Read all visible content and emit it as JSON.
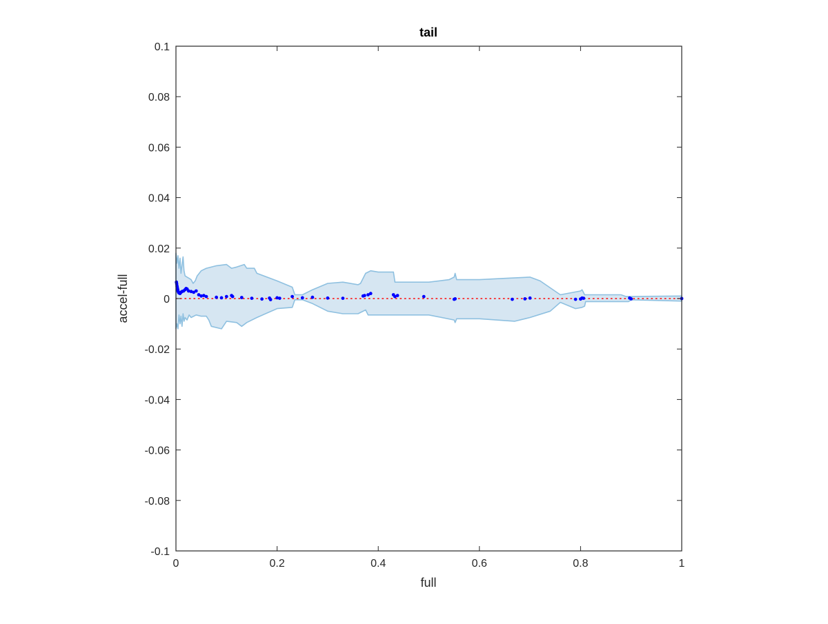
{
  "chart_data": {
    "type": "scatter",
    "title": "tail",
    "xlabel": "full",
    "ylabel": "accel-full",
    "xlim": [
      0,
      1
    ],
    "ylim": [
      -0.1,
      0.1
    ],
    "xticks": [
      0,
      0.2,
      0.4,
      0.6,
      0.8,
      1
    ],
    "xtick_labels": [
      "0",
      "0.2",
      "0.4",
      "0.6",
      "0.8",
      "1"
    ],
    "yticks": [
      -0.1,
      -0.08,
      -0.06,
      -0.04,
      -0.02,
      0,
      0.02,
      0.04,
      0.06,
      0.08,
      0.1
    ],
    "ytick_labels": [
      "-0.1",
      "-0.08",
      "-0.06",
      "-0.04",
      "-0.02",
      "0",
      "0.02",
      "0.04",
      "0.06",
      "0.08",
      "0.1"
    ],
    "grid": false,
    "box": true,
    "colors": {
      "points": "#0000ff",
      "band_fill": "#d6e6f2",
      "band_edge": "#8ec0e0",
      "zero_line": "#ff0000",
      "axes": "#262626"
    },
    "band": {
      "upper": [
        [
          0,
          0.018
        ],
        [
          0.002,
          0.014
        ],
        [
          0.004,
          0.017
        ],
        [
          0.006,
          0.012
        ],
        [
          0.008,
          0.016
        ],
        [
          0.01,
          0.01
        ],
        [
          0.014,
          0.0165
        ],
        [
          0.016,
          0.011
        ],
        [
          0.018,
          0.009
        ],
        [
          0.022,
          0.0085
        ],
        [
          0.026,
          0.008
        ],
        [
          0.03,
          0.0075
        ],
        [
          0.034,
          0.006
        ],
        [
          0.038,
          0.007
        ],
        [
          0.042,
          0.009
        ],
        [
          0.05,
          0.011
        ],
        [
          0.06,
          0.012
        ],
        [
          0.08,
          0.013
        ],
        [
          0.1,
          0.0135
        ],
        [
          0.11,
          0.012
        ],
        [
          0.12,
          0.0125
        ],
        [
          0.135,
          0.0135
        ],
        [
          0.14,
          0.012
        ],
        [
          0.155,
          0.012
        ],
        [
          0.16,
          0.01
        ],
        [
          0.2,
          0.007
        ],
        [
          0.23,
          0.0045
        ],
        [
          0.235,
          0.0015
        ],
        [
          0.25,
          0.0015
        ],
        [
          0.27,
          0.0035
        ],
        [
          0.3,
          0.006
        ],
        [
          0.33,
          0.0065
        ],
        [
          0.36,
          0.0055
        ],
        [
          0.365,
          0.006
        ],
        [
          0.375,
          0.01
        ],
        [
          0.38,
          0.0105
        ],
        [
          0.385,
          0.011
        ],
        [
          0.4,
          0.0105
        ],
        [
          0.43,
          0.0105
        ],
        [
          0.433,
          0.0065
        ],
        [
          0.5,
          0.0065
        ],
        [
          0.54,
          0.0075
        ],
        [
          0.55,
          0.0085
        ],
        [
          0.552,
          0.01
        ],
        [
          0.555,
          0.0075
        ],
        [
          0.6,
          0.0075
        ],
        [
          0.65,
          0.008
        ],
        [
          0.7,
          0.0085
        ],
        [
          0.72,
          0.007
        ],
        [
          0.76,
          0.0015
        ],
        [
          0.8,
          0.003
        ],
        [
          0.803,
          0.0035
        ],
        [
          0.808,
          0.0015
        ],
        [
          0.88,
          0.0015
        ],
        [
          0.89,
          0.0008
        ],
        [
          1,
          0.001
        ]
      ],
      "lower": [
        [
          1,
          -0.001
        ],
        [
          0.9,
          -0.0005
        ],
        [
          0.895,
          -0.0012
        ],
        [
          0.81,
          -0.0012
        ],
        [
          0.808,
          -0.003
        ],
        [
          0.803,
          -0.0035
        ],
        [
          0.79,
          -0.004
        ],
        [
          0.76,
          -0.0015
        ],
        [
          0.74,
          -0.005
        ],
        [
          0.7,
          -0.0075
        ],
        [
          0.67,
          -0.009
        ],
        [
          0.6,
          -0.008
        ],
        [
          0.555,
          -0.008
        ],
        [
          0.552,
          -0.0095
        ],
        [
          0.55,
          -0.0085
        ],
        [
          0.5,
          -0.0065
        ],
        [
          0.433,
          -0.0065
        ],
        [
          0.43,
          -0.0065
        ],
        [
          0.4,
          -0.0065
        ],
        [
          0.38,
          -0.0065
        ],
        [
          0.375,
          -0.0045
        ],
        [
          0.36,
          -0.006
        ],
        [
          0.33,
          -0.006
        ],
        [
          0.3,
          -0.005
        ],
        [
          0.27,
          -0.002
        ],
        [
          0.25,
          -0.0005
        ],
        [
          0.235,
          -0.0005
        ],
        [
          0.23,
          -0.0035
        ],
        [
          0.2,
          -0.004
        ],
        [
          0.16,
          -0.0075
        ],
        [
          0.14,
          -0.0095
        ],
        [
          0.13,
          -0.011
        ],
        [
          0.12,
          -0.0095
        ],
        [
          0.1,
          -0.009
        ],
        [
          0.09,
          -0.012
        ],
        [
          0.07,
          -0.011
        ],
        [
          0.065,
          -0.0085
        ],
        [
          0.06,
          -0.007
        ],
        [
          0.05,
          -0.007
        ],
        [
          0.04,
          -0.0065
        ],
        [
          0.03,
          -0.0075
        ],
        [
          0.026,
          -0.0065
        ],
        [
          0.022,
          -0.0085
        ],
        [
          0.018,
          -0.0075
        ],
        [
          0.016,
          -0.009
        ],
        [
          0.014,
          -0.006
        ],
        [
          0.012,
          -0.011
        ],
        [
          0.01,
          -0.007
        ],
        [
          0.008,
          -0.01
        ],
        [
          0.006,
          -0.0065
        ],
        [
          0.004,
          -0.012
        ],
        [
          0.002,
          -0.01
        ],
        [
          0,
          -0.012
        ]
      ]
    },
    "zero_line": {
      "y": 0,
      "style": "dotted"
    },
    "series": [
      {
        "points": [
          [
            0.001,
            0.0065
          ],
          [
            0.0015,
            0.0058
          ],
          [
            0.002,
            0.005
          ],
          [
            0.0025,
            0.0045
          ],
          [
            0.003,
            0.004
          ],
          [
            0.0035,
            0.0035
          ],
          [
            0.004,
            0.003
          ],
          [
            0.005,
            0.0025
          ],
          [
            0.006,
            0.0022
          ],
          [
            0.008,
            0.002
          ],
          [
            0.01,
            0.0025
          ],
          [
            0.012,
            0.0028
          ],
          [
            0.015,
            0.003
          ],
          [
            0.018,
            0.0035
          ],
          [
            0.02,
            0.004
          ],
          [
            0.022,
            0.0038
          ],
          [
            0.025,
            0.003
          ],
          [
            0.03,
            0.0028
          ],
          [
            0.035,
            0.0025
          ],
          [
            0.04,
            0.003
          ],
          [
            0.045,
            0.0015
          ],
          [
            0.05,
            0.001
          ],
          [
            0.055,
            0.0012
          ],
          [
            0.06,
            0.0008
          ],
          [
            0.08,
            0.0005
          ],
          [
            0.09,
            0.0003
          ],
          [
            0.1,
            0.0008
          ],
          [
            0.11,
            0.0012
          ],
          [
            0.112,
            0.0008
          ],
          [
            0.13,
            0.0004
          ],
          [
            0.15,
            0.0001
          ],
          [
            0.17,
            -0.0002
          ],
          [
            0.185,
            0.0002
          ],
          [
            0.187,
            -0.0004
          ],
          [
            0.2,
            0.0003
          ],
          [
            0.205,
            0.0001
          ],
          [
            0.23,
            0.0008
          ],
          [
            0.25,
            0.0003
          ],
          [
            0.27,
            0.0005
          ],
          [
            0.3,
            0.0002
          ],
          [
            0.33,
            0.0001
          ],
          [
            0.37,
            0.001
          ],
          [
            0.373,
            0.0012
          ],
          [
            0.38,
            0.0015
          ],
          [
            0.385,
            0.002
          ],
          [
            0.43,
            0.0015
          ],
          [
            0.433,
            0.0008
          ],
          [
            0.438,
            0.0012
          ],
          [
            0.49,
            0.0008
          ],
          [
            0.55,
            -0.0003
          ],
          [
            0.552,
            -0.0001
          ],
          [
            0.665,
            -0.0003
          ],
          [
            0.69,
            -0.0001
          ],
          [
            0.7,
            0.0002
          ],
          [
            0.79,
            -0.0003
          ],
          [
            0.8,
            -0.0002
          ],
          [
            0.803,
            0.0002
          ],
          [
            0.806,
            0.0001
          ],
          [
            0.897,
            0.0002
          ],
          [
            0.9,
            -0.0001
          ],
          [
            1,
            0
          ]
        ]
      }
    ]
  }
}
